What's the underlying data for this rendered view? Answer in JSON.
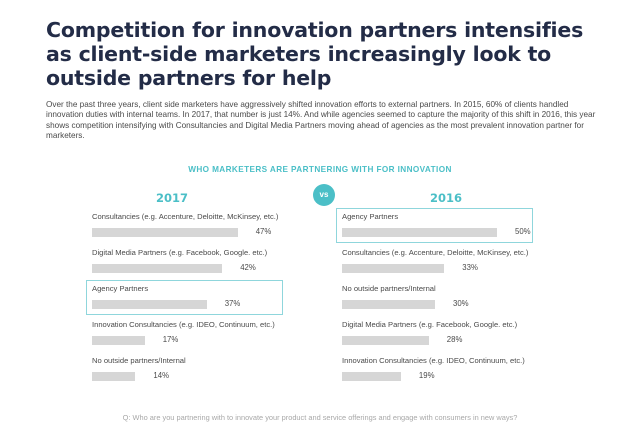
{
  "title": "Competition for innovation partners intensifies as client-side marketers increasingly look to outside partners for help",
  "intro": "Over the past three years, client side marketers have aggressively shifted innovation efforts to external partners. In 2015, 60% of clients handled innovation duties with internal teams. In 2017, that number is just 14%. And while agencies seemed to capture the majority of this shift in 2016, this year shows competition intensifying with Consultancies and Digital Media Partners moving ahead of agencies as the most prevalent innovation partner for marketers.",
  "section_title": "WHO MARKETERS ARE PARTNERING WITH FOR INNOVATION",
  "vs_label": "vs",
  "question": "Q: Who are you partnering with to innovate your product and service offerings and engage with consumers in new ways?",
  "colors": {
    "accent": "#4bbfc7",
    "bar": "#d6d6d6",
    "highlight": "#8fd6dc",
    "title": "#232c47"
  },
  "chart_data": [
    {
      "type": "bar",
      "orientation": "horizontal",
      "title": "2017",
      "categories": [
        "Consultancies (e.g. Accenture, Deloitte, McKinsey, etc.)",
        "Digital Media Partners (e.g. Facebook, Google. etc.)",
        "Agency Partners",
        "Innovation Consultancies (e.g. IDEO, Continuum, etc.)",
        "No outside partners/Internal"
      ],
      "values": [
        47,
        42,
        37,
        17,
        14
      ],
      "labels": [
        "47%",
        "42%",
        "37%",
        "17%",
        "14%"
      ],
      "highlight": "Agency Partners",
      "unit": "%",
      "xlim": [
        0,
        50
      ]
    },
    {
      "type": "bar",
      "orientation": "horizontal",
      "title": "2016",
      "categories": [
        "Agency Partners",
        "Consultancies (e.g. Accenture, Deloitte, McKinsey, etc.)",
        "No outside partners/Internal",
        "Digital Media Partners (e.g. Facebook, Google. etc.)",
        "Innovation Consultancies (e.g. IDEO, Continuum, etc.)"
      ],
      "values": [
        50,
        33,
        30,
        28,
        19
      ],
      "labels": [
        "50%",
        "33%",
        "30%",
        "28%",
        "19%"
      ],
      "highlight": "Agency Partners",
      "unit": "%",
      "xlim": [
        0,
        50
      ]
    }
  ]
}
